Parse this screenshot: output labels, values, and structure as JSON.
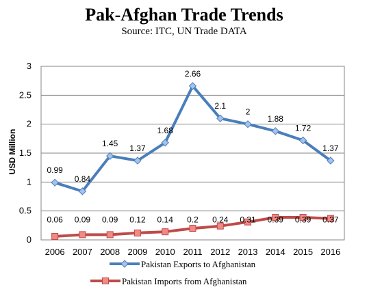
{
  "chart_data": {
    "type": "line",
    "title": "Pak-Afghan Trade Trends",
    "subtitle": "Source: ITC, UN Trade DATA",
    "ylabel": "USD Million",
    "xlabel": "",
    "categories": [
      "2006",
      "2007",
      "2008",
      "2009",
      "2010",
      "2011",
      "2012",
      "2013",
      "2014",
      "2015",
      "2016"
    ],
    "ylim": [
      0,
      3
    ],
    "yticks": [
      "0",
      "0.5",
      "1",
      "1.5",
      "2",
      "2.5",
      "3"
    ],
    "grid": true,
    "legend_position": "bottom",
    "series": [
      {
        "name": "Pakistan Exports to Afghanistan",
        "color": "#4a7ebb",
        "marker": "diamond",
        "values": [
          0.99,
          0.84,
          1.45,
          1.37,
          1.68,
          2.66,
          2.1,
          2,
          1.88,
          1.72,
          1.37
        ],
        "labels": [
          "0.99",
          "0.84",
          "1.45",
          "1.37",
          "1.68",
          "2.66",
          "2.1",
          "2",
          "1.88",
          "1.72",
          "1.37"
        ]
      },
      {
        "name": "Pakistan Imports from Afghanistan",
        "color": "#be4b48",
        "marker": "square",
        "values": [
          0.06,
          0.09,
          0.09,
          0.12,
          0.14,
          0.2,
          0.24,
          0.31,
          0.39,
          0.39,
          0.37
        ],
        "labels": [
          "0.06",
          "0.09",
          "0.09",
          "0.12",
          "0.14",
          "0.2",
          "0.24",
          "0.31",
          "0.39",
          "0.39",
          "0.37"
        ]
      }
    ]
  }
}
